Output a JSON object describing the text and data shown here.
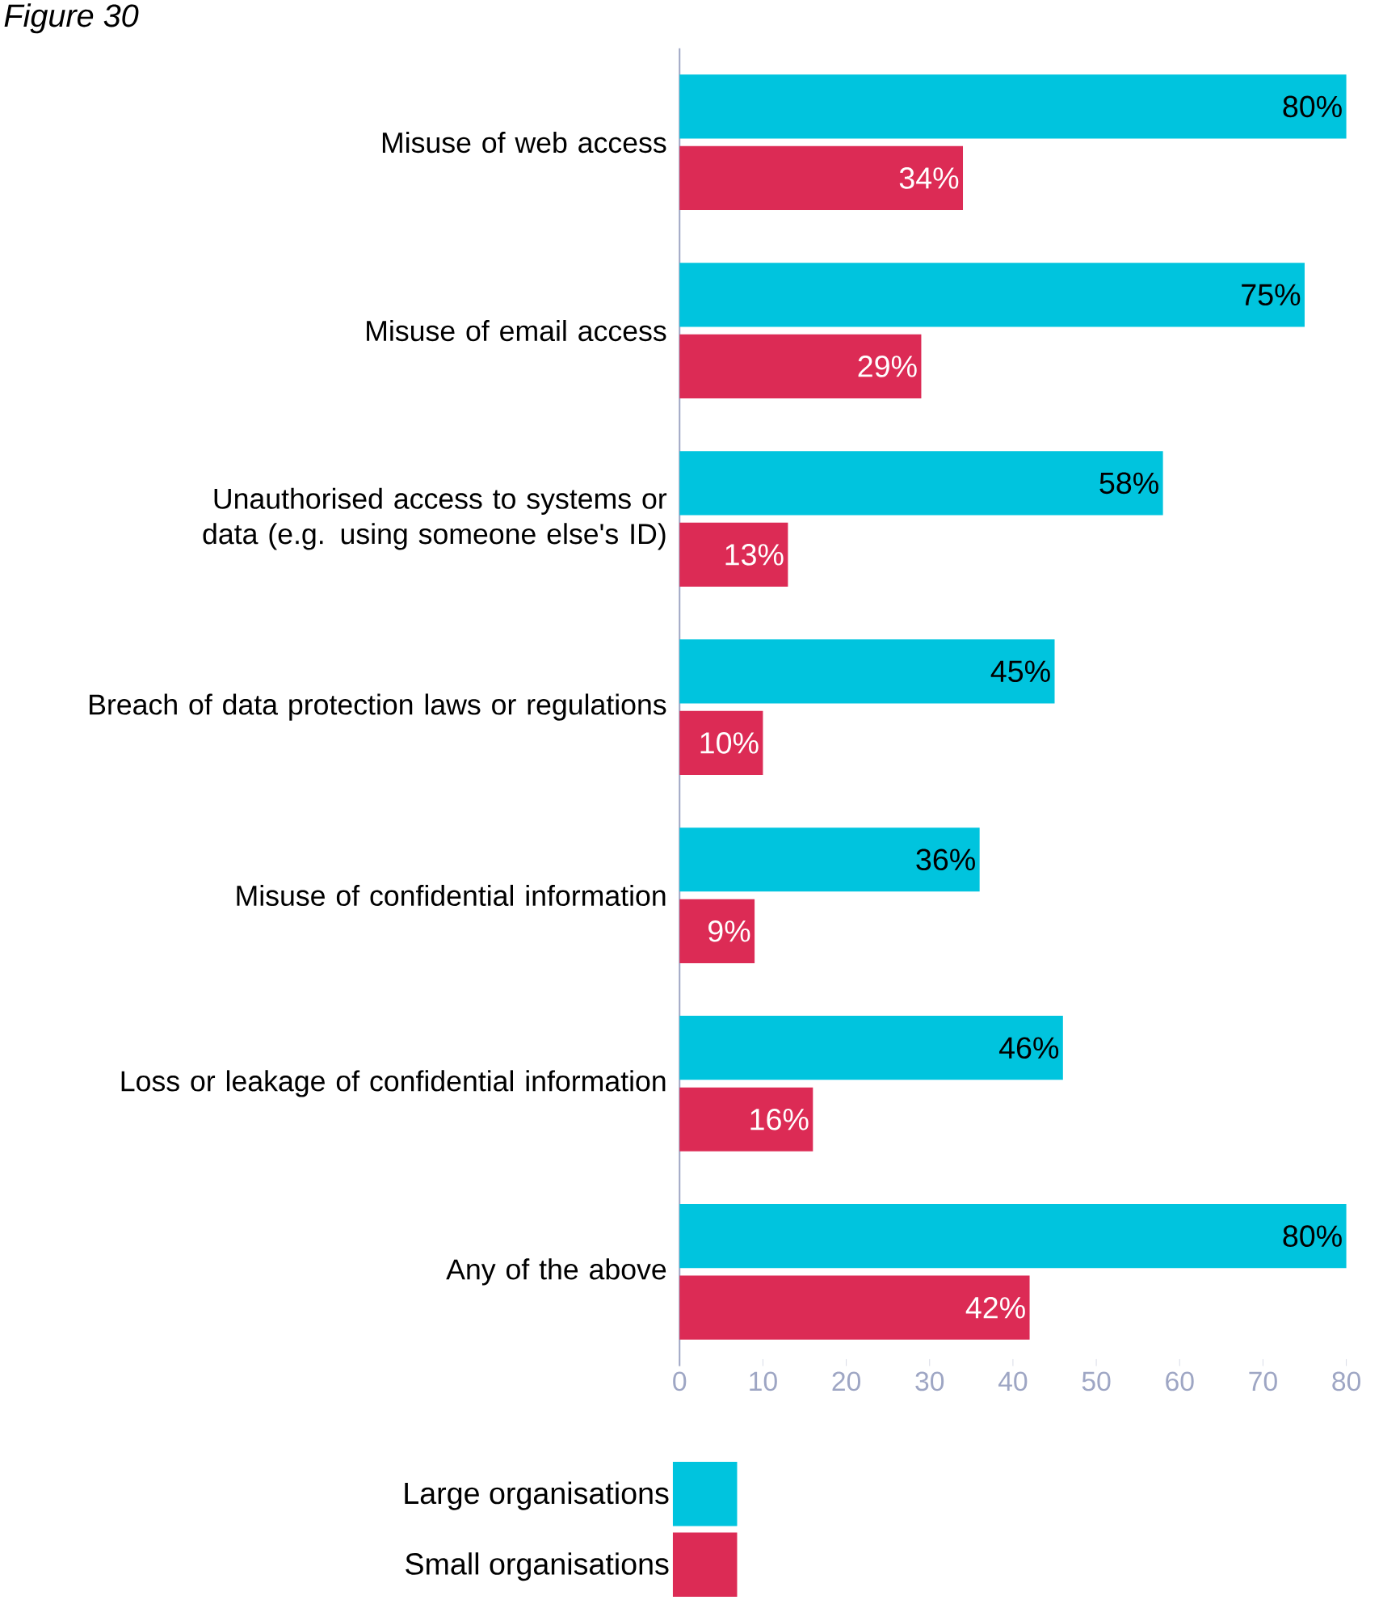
{
  "chart_data": {
    "type": "bar",
    "orientation": "horizontal",
    "title": "Figure 30",
    "categories": [
      "Misuse of web access",
      "Misuse of email access",
      "Unauthorised access to systems or data (e.g. using someone else's ID)",
      "Breach of data protection laws or regulations",
      "Misuse of confidential information",
      "Loss or leakage of confidential information",
      "Any of the above"
    ],
    "series": [
      {
        "name": "Large organisations",
        "color": "#00c4de",
        "values": [
          80,
          75,
          58,
          45,
          36,
          46,
          80
        ],
        "value_labels": [
          "80%",
          "75%",
          "58%",
          "45%",
          "36%",
          "46%",
          "80%"
        ]
      },
      {
        "name": "Small organisations",
        "color": "#dc2b55",
        "values": [
          34,
          29,
          13,
          10,
          9,
          16,
          42
        ],
        "value_labels": [
          "34%",
          "29%",
          "13%",
          "10%",
          "9%",
          "16%",
          "42%"
        ]
      }
    ],
    "xlim": [
      0,
      80
    ],
    "xticks": [
      0,
      10,
      20,
      30,
      40,
      50,
      60,
      70,
      80
    ],
    "grid": false,
    "legend": "bottom"
  }
}
